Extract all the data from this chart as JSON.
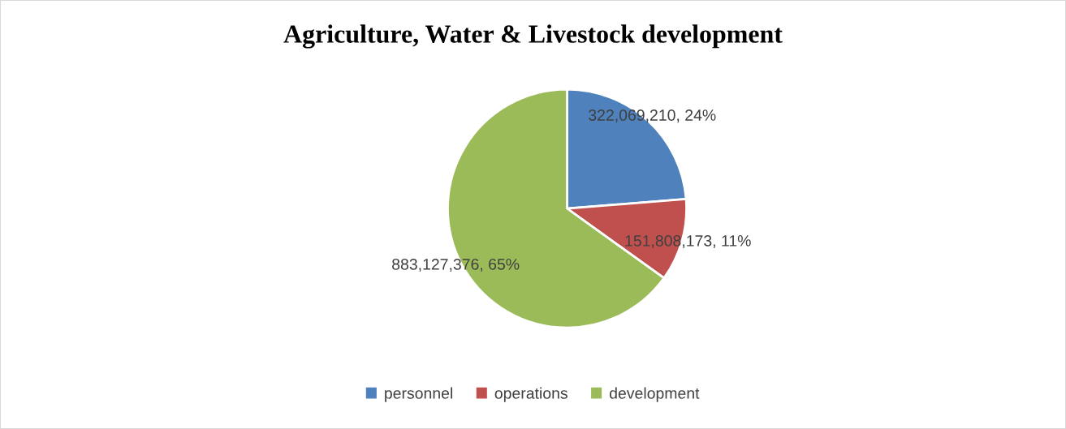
{
  "chart_data": {
    "type": "pie",
    "title": "Agriculture, Water & Livestock development",
    "categories": [
      "personnel",
      "operations",
      "development"
    ],
    "values": [
      322069210,
      151808173,
      883127376
    ],
    "value_labels": [
      "322,069,210, 24%",
      "151,808,173, 11%",
      "883,127,376, 65%"
    ],
    "colors": [
      "#4f81bd",
      "#c0504d",
      "#9bbb59"
    ],
    "legend": "bottom"
  }
}
